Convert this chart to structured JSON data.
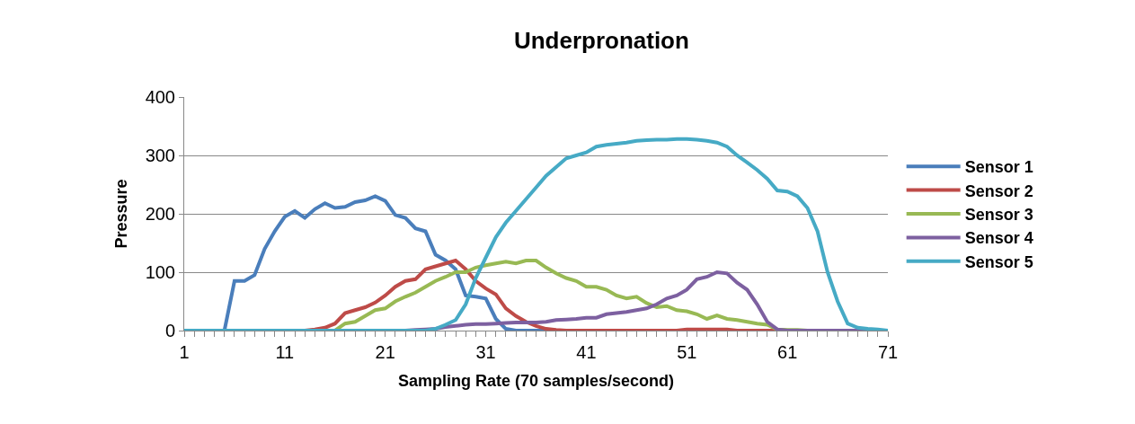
{
  "chart_data": {
    "type": "line",
    "title": "Underpronation",
    "xlabel": "Sampling Rate (70 samples/second)",
    "ylabel": "Pressure",
    "x": [
      1,
      2,
      3,
      4,
      5,
      6,
      7,
      8,
      9,
      10,
      11,
      12,
      13,
      14,
      15,
      16,
      17,
      18,
      19,
      20,
      21,
      22,
      23,
      24,
      25,
      26,
      27,
      28,
      29,
      30,
      31,
      32,
      33,
      34,
      35,
      36,
      37,
      38,
      39,
      40,
      41,
      42,
      43,
      44,
      45,
      46,
      47,
      48,
      49,
      50,
      51,
      52,
      53,
      54,
      55,
      56,
      57,
      58,
      59,
      60,
      61,
      62,
      63,
      64,
      65,
      66,
      67,
      68,
      69,
      70,
      71
    ],
    "series": [
      {
        "name": "Sensor 1",
        "color": "#4a7ebb",
        "values": [
          null,
          null,
          0,
          0,
          0,
          85,
          85,
          95,
          140,
          170,
          195,
          205,
          193,
          208,
          218,
          210,
          212,
          220,
          223,
          230,
          222,
          198,
          193,
          175,
          170,
          130,
          120,
          105,
          60,
          58,
          55,
          20,
          3,
          0,
          0,
          0,
          0,
          0,
          0,
          0,
          0,
          0,
          0,
          0,
          0,
          0,
          0,
          0,
          0,
          0,
          0,
          0,
          0,
          0,
          0,
          0,
          0,
          0,
          0,
          0,
          0,
          0,
          0,
          0,
          0,
          0,
          0,
          0,
          0,
          0,
          0
        ]
      },
      {
        "name": "Sensor 2",
        "color": "#be4b48",
        "values": [
          null,
          null,
          null,
          null,
          null,
          null,
          null,
          null,
          null,
          null,
          null,
          0,
          0,
          2,
          5,
          12,
          30,
          35,
          40,
          48,
          60,
          75,
          85,
          88,
          105,
          110,
          115,
          120,
          105,
          85,
          72,
          62,
          38,
          25,
          15,
          8,
          3,
          1,
          0,
          0,
          0,
          0,
          0,
          0,
          0,
          0,
          0,
          0,
          0,
          0,
          2,
          2,
          2,
          2,
          2,
          0,
          0,
          0,
          0,
          0,
          0,
          null,
          null,
          null,
          null,
          null,
          null,
          null,
          null,
          null,
          null
        ]
      },
      {
        "name": "Sensor 3",
        "color": "#98b954",
        "values": [
          null,
          null,
          null,
          null,
          null,
          null,
          null,
          null,
          null,
          null,
          null,
          null,
          null,
          null,
          0,
          0,
          12,
          15,
          25,
          35,
          38,
          50,
          58,
          65,
          75,
          85,
          92,
          100,
          100,
          108,
          112,
          115,
          118,
          115,
          120,
          120,
          108,
          98,
          90,
          85,
          75,
          75,
          70,
          60,
          55,
          58,
          47,
          40,
          42,
          35,
          33,
          28,
          20,
          26,
          20,
          18,
          15,
          12,
          10,
          2,
          1,
          1,
          0,
          0,
          null,
          null,
          null,
          null,
          null,
          null,
          null
        ]
      },
      {
        "name": "Sensor 4",
        "color": "#7d60a0",
        "values": [
          0,
          0,
          0,
          0,
          0,
          0,
          0,
          0,
          0,
          0,
          0,
          0,
          0,
          0,
          0,
          0,
          0,
          0,
          0,
          0,
          0,
          0,
          0,
          1,
          2,
          3,
          6,
          8,
          10,
          11,
          11,
          12,
          13,
          14,
          14,
          14,
          15,
          18,
          19,
          20,
          22,
          22,
          28,
          30,
          32,
          35,
          38,
          45,
          55,
          60,
          70,
          88,
          92,
          100,
          98,
          82,
          70,
          45,
          15,
          2,
          0,
          0,
          0,
          0,
          0,
          0,
          0,
          0,
          0,
          0,
          0
        ]
      },
      {
        "name": "Sensor 5",
        "color": "#46aac5",
        "values": [
          0,
          0,
          0,
          0,
          0,
          0,
          0,
          0,
          0,
          0,
          0,
          0,
          0,
          0,
          0,
          0,
          0,
          0,
          0,
          0,
          0,
          0,
          0,
          0,
          0,
          3,
          10,
          18,
          45,
          90,
          125,
          160,
          185,
          205,
          225,
          245,
          265,
          280,
          295,
          300,
          305,
          315,
          318,
          320,
          322,
          325,
          326,
          327,
          327,
          328,
          328,
          327,
          325,
          322,
          315,
          300,
          288,
          275,
          260,
          240,
          238,
          230,
          210,
          170,
          100,
          50,
          12,
          5,
          3,
          2,
          0
        ]
      }
    ],
    "xlim": [
      1,
      71
    ],
    "xticks": [
      1,
      11,
      21,
      31,
      41,
      51,
      61,
      71
    ],
    "ylim": [
      0,
      400
    ],
    "yticks": [
      0,
      100,
      200,
      300,
      400
    ],
    "grid": "y",
    "legend": "right",
    "marker": "none",
    "line_style": "solid"
  }
}
